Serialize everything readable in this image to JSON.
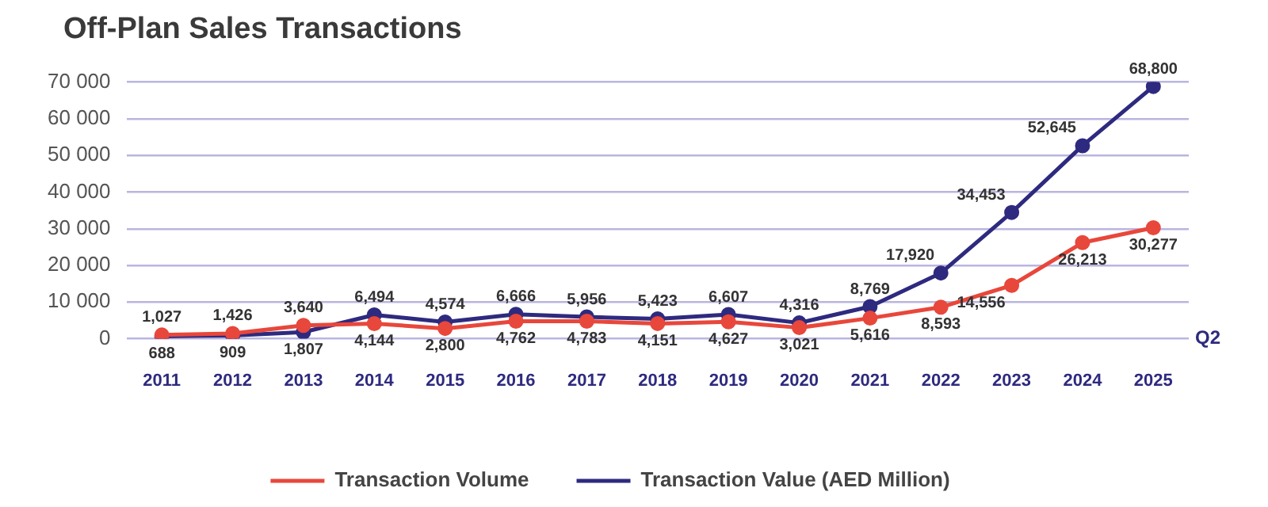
{
  "chart_data": {
    "type": "line",
    "title": "Off-Plan Sales Transactions",
    "categories": [
      "2011",
      "2012",
      "2013",
      "2014",
      "2015",
      "2016",
      "2017",
      "2018",
      "2019",
      "2020",
      "2021",
      "2022",
      "2023",
      "2024",
      "2025"
    ],
    "series": [
      {
        "name": "Transaction Volume",
        "color": "#e8473b",
        "values": [
          1027,
          1426,
          3640,
          4144,
          2800,
          4762,
          4783,
          4151,
          4627,
          3021,
          5616,
          8593,
          14556,
          26213,
          30277
        ],
        "value_labels": [
          "1,027",
          "1,426",
          "3,640",
          "4,144",
          "2,800",
          "4,762",
          "4,783",
          "4,151",
          "4,627",
          "3,021",
          "5,616",
          "8,593",
          "14,556",
          "26,213",
          "30,277"
        ]
      },
      {
        "name": "Transaction Value (AED Million)",
        "color": "#2e2a7f",
        "values": [
          688,
          909,
          1807,
          6494,
          4574,
          6666,
          5956,
          5423,
          6607,
          4316,
          8769,
          17920,
          34453,
          52645,
          68800
        ],
        "value_labels": [
          "688",
          "909",
          "1,807",
          "6,494",
          "4,574",
          "6,666",
          "5,956",
          "5,423",
          "6,607",
          "4,316",
          "8,769",
          "17,920",
          "34,453",
          "52,645",
          "68,800"
        ]
      }
    ],
    "ylim": [
      0,
      70000
    ],
    "yticks": [
      0,
      {
        "value": 10000,
        "label": "10 000"
      },
      {
        "value": 20000,
        "label": "20 000"
      },
      {
        "value": 30000,
        "label": "30 000"
      },
      {
        "value": 40000,
        "label": "40 000"
      },
      {
        "value": 50000,
        "label": "50 000"
      },
      {
        "value": 60000,
        "label": "60 000"
      },
      {
        "value": 70000,
        "label": "70 000"
      }
    ],
    "grid": "y",
    "legend": "bottom",
    "marker": "circle",
    "line_style": "solid",
    "annotations": [
      "Q2"
    ]
  }
}
